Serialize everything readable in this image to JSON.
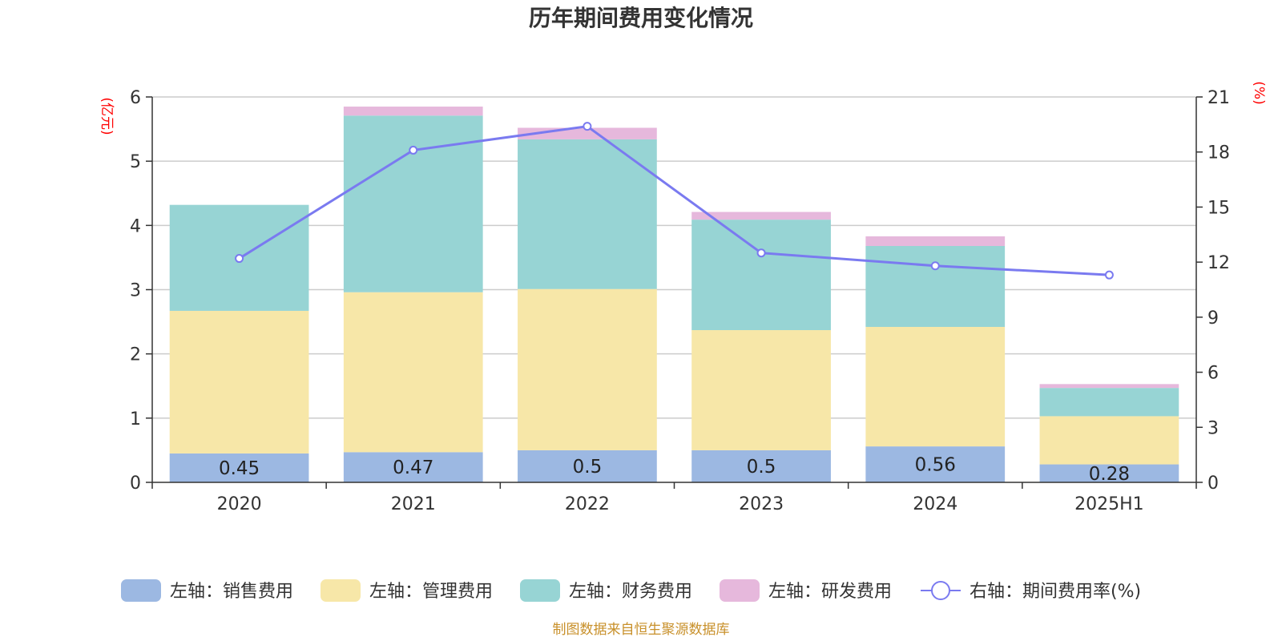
{
  "chart_data": {
    "title": "历年期间费用变化情况",
    "type": "bar",
    "stacked": true,
    "categories": [
      "2020",
      "2021",
      "2022",
      "2023",
      "2024",
      "2025H1"
    ],
    "left_axis": {
      "unit": "(亿元)",
      "ylim": [
        0,
        6
      ],
      "ticks": [
        "0",
        "1",
        "2",
        "3",
        "4",
        "5",
        "6"
      ]
    },
    "right_axis": {
      "unit": "(%)",
      "ylim": [
        0,
        21
      ],
      "ticks": [
        "0",
        "3",
        "6",
        "9",
        "12",
        "15",
        "18",
        "21"
      ]
    },
    "series": [
      {
        "name": "左轴：销售费用",
        "type": "bar",
        "axis": "left",
        "color": "#9cb8e2",
        "values": [
          0.45,
          0.47,
          0.5,
          0.5,
          0.56,
          0.28
        ],
        "labels": [
          "0.45",
          "0.47",
          "0.5",
          "0.5",
          "0.56",
          "0.28"
        ]
      },
      {
        "name": "左轴：管理费用",
        "type": "bar",
        "axis": "left",
        "color": "#f7e7a8",
        "values": [
          2.22,
          2.49,
          2.51,
          1.87,
          1.86,
          0.75
        ]
      },
      {
        "name": "左轴：财务费用",
        "type": "bar",
        "axis": "left",
        "color": "#97d4d4",
        "values": [
          1.65,
          2.75,
          2.33,
          1.72,
          1.26,
          0.44
        ]
      },
      {
        "name": "左轴：研发费用",
        "type": "bar",
        "axis": "left",
        "color": "#e6b8dc",
        "values": [
          0.0,
          0.14,
          0.18,
          0.12,
          0.15,
          0.06
        ]
      },
      {
        "name": "右轴：期间费用率(%)",
        "type": "line",
        "axis": "right",
        "color": "#7a7af0",
        "values": [
          12.2,
          18.1,
          19.4,
          12.5,
          11.8,
          11.3
        ]
      }
    ],
    "grid": true,
    "legend_position": "bottom"
  },
  "source_text": "制图数据来自恒生聚源数据库"
}
